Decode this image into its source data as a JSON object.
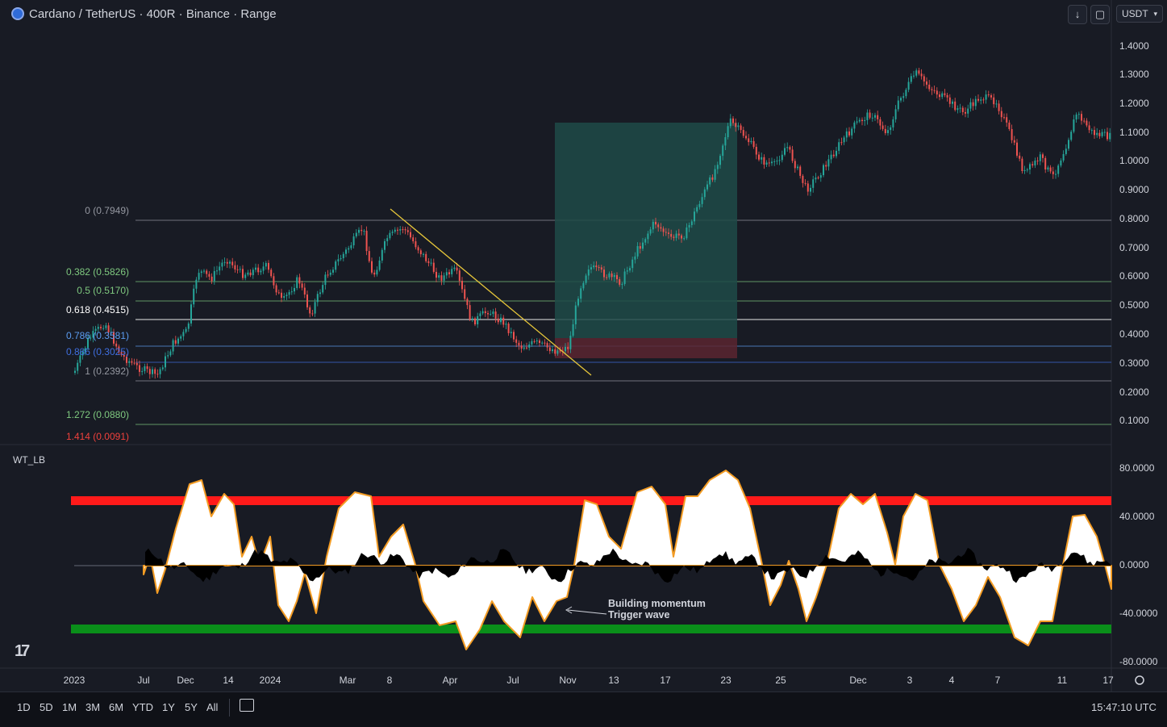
{
  "header": {
    "title": "Cardano / TetherUS · 400R · Binance · Range",
    "currency": "USDT",
    "download_icon": "arrow-down-icon",
    "fullscreen_icon": "fullscreen-icon"
  },
  "price_axis": [
    "1.4000",
    "1.3000",
    "1.2000",
    "1.1000",
    "1.0000",
    "0.9000",
    "0.8000",
    "0.7000",
    "0.6000",
    "0.5000",
    "0.4000",
    "0.3000",
    "0.2000",
    "0.1000"
  ],
  "oscillator_axis": [
    "80.0000",
    "40.0000",
    "0.0000",
    "-40.0000",
    "-80.0000"
  ],
  "fib_levels": [
    {
      "label": "0 (0.7949)",
      "color": "#9598a1"
    },
    {
      "label": "0.382 (0.5826)",
      "color": "#7fc97f"
    },
    {
      "label": "0.5 (0.5170)",
      "color": "#7fc97f"
    },
    {
      "label": "0.618 (0.4515)",
      "color": "#ffffff"
    },
    {
      "label": "0.786 (0.3581)",
      "color": "#5b9cf0"
    },
    {
      "label": "0.886 (0.3025)",
      "color": "#3f6fe0"
    },
    {
      "label": "1 (0.2392)",
      "color": "#9598a1"
    },
    {
      "label": "1.272 (0.0880)",
      "color": "#7fc97f"
    },
    {
      "label": "1.414 (0.0091)",
      "color": "#f0413c"
    }
  ],
  "x_axis": [
    "2023",
    "Jul",
    "Dec",
    "14",
    "2024",
    "Mar",
    "8",
    "Apr",
    "Jul",
    "Nov",
    "13",
    "17",
    "23",
    "25",
    "Dec",
    "3",
    "4",
    "7",
    "11",
    "17"
  ],
  "indicator": {
    "name": "WT_LB",
    "annotation_line1": "Building momentum",
    "annotation_line2": "Trigger wave",
    "overbought_color": "#ff1a1a",
    "oversold_color": "#0a8f1a"
  },
  "timeframes": [
    "1D",
    "5D",
    "1M",
    "3M",
    "6M",
    "YTD",
    "1Y",
    "5Y",
    "All"
  ],
  "calendar_icon": "calendar-icon",
  "settings_icon": "gear-icon",
  "clock": "15:47:10 UTC",
  "colors": {
    "background": "#181b24",
    "up_candle": "#26a69a",
    "down_candle": "#ef5350",
    "trendline": "#e6c63a",
    "profit_zone": "#1f4a48",
    "loss_zone": "#5a2430"
  }
}
